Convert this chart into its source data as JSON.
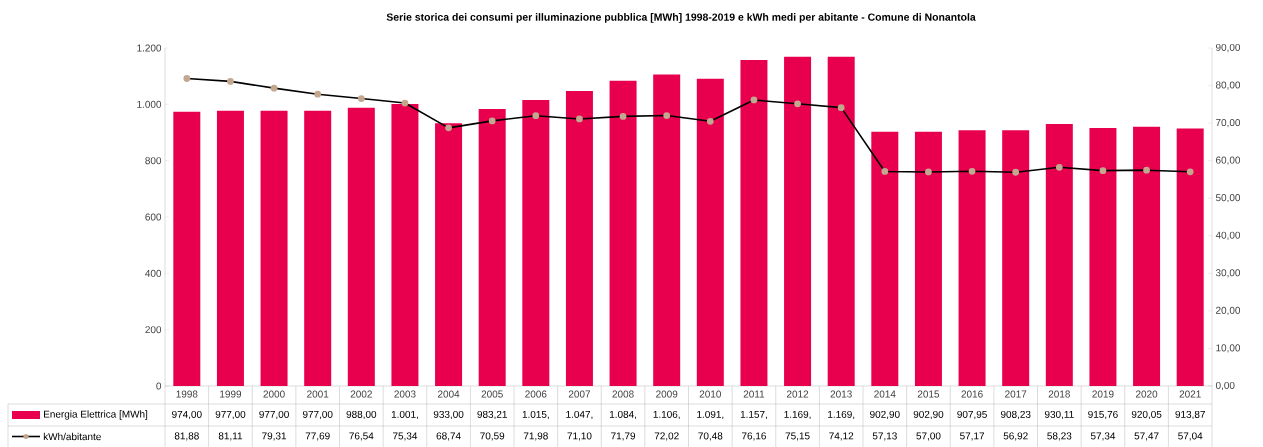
{
  "chart_data": {
    "type": "bar",
    "title": "Serie storica dei consumi per illuminazione pubblica [MWh] 1998-2019 e kWh medi per abitante - Comune di Nonantola",
    "categories": [
      "1998",
      "1999",
      "2000",
      "2001",
      "2002",
      "2003",
      "2004",
      "2005",
      "2006",
      "2007",
      "2008",
      "2009",
      "2010",
      "2011",
      "2012",
      "2013",
      "2014",
      "2015",
      "2016",
      "2017",
      "2018",
      "2019",
      "2020",
      "2021"
    ],
    "series": [
      {
        "name": "Energia Elettrica [MWh]",
        "type": "bar",
        "color": "#e8004f",
        "values": [
          974.0,
          977.0,
          977.0,
          977.0,
          988.0,
          1001,
          933.0,
          983.21,
          1015,
          1047,
          1084,
          1106,
          1091,
          1157,
          1169,
          1169,
          902.9,
          902.9,
          907.95,
          908.23,
          930.11,
          915.76,
          920.05,
          913.87
        ],
        "value_labels": [
          "974,00",
          "977,00",
          "977,00",
          "977,00",
          "988,00",
          "1.001,",
          "933,00",
          "983,21",
          "1.015,",
          "1.047,",
          "1.084,",
          "1.106,",
          "1.091,",
          "1.157,",
          "1.169,",
          "1.169,",
          "902,90",
          "902,90",
          "907,95",
          "908,23",
          "930,11",
          "915,76",
          "920,05",
          "913,87"
        ]
      },
      {
        "name": "kWh/abitante",
        "type": "line",
        "axis": "y2",
        "color": "#000000",
        "marker": "circle",
        "values": [
          81.88,
          81.11,
          79.31,
          77.69,
          76.54,
          75.34,
          68.74,
          70.59,
          71.98,
          71.1,
          71.79,
          72.02,
          70.48,
          76.16,
          75.15,
          74.12,
          57.13,
          57.0,
          57.17,
          56.92,
          58.23,
          57.34,
          57.47,
          57.04
        ],
        "value_labels": [
          "81,88",
          "81,11",
          "79,31",
          "77,69",
          "76,54",
          "75,34",
          "68,74",
          "70,59",
          "71,98",
          "71,10",
          "71,79",
          "72,02",
          "70,48",
          "76,16",
          "75,15",
          "74,12",
          "57,13",
          "57,00",
          "57,17",
          "56,92",
          "58,23",
          "57,34",
          "57,47",
          "57,04"
        ]
      }
    ],
    "ylim": [
      0,
      1200
    ],
    "yticks": [
      0,
      200,
      400,
      600,
      800,
      {
        "value": 1000,
        "label": "1.000"
      },
      {
        "value": 1200,
        "label": "1.200"
      }
    ],
    "y2lim": [
      0,
      90
    ],
    "y2ticks": [
      {
        "value": 0,
        "label": "0,00"
      },
      {
        "value": 10,
        "label": "10,00"
      },
      {
        "value": 20,
        "label": "20,00"
      },
      {
        "value": 30,
        "label": "30,00"
      },
      {
        "value": 40,
        "label": "40,00"
      },
      {
        "value": 50,
        "label": "50,00"
      },
      {
        "value": 60,
        "label": "60,00"
      },
      {
        "value": 70,
        "label": "70,00"
      },
      {
        "value": 80,
        "label": "80,00"
      },
      {
        "value": 90,
        "label": "90,00"
      }
    ],
    "legend": "bottom"
  }
}
